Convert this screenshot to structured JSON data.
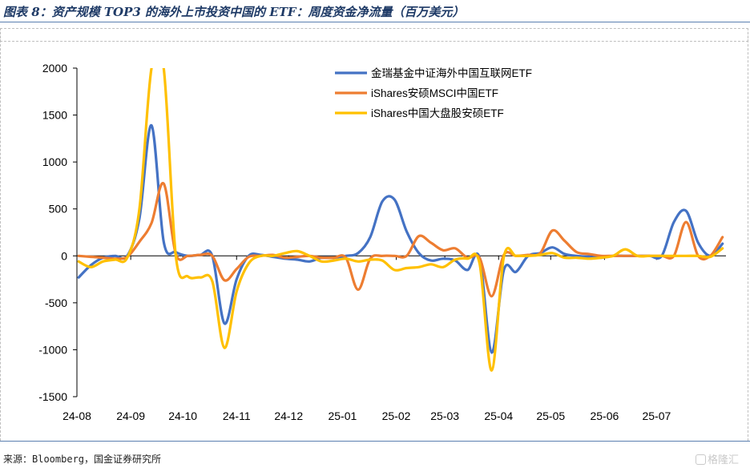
{
  "title": "图表 8：资产规模 TOP3 的海外上市投资中国的 ETF：周度资金净流量（百万美元）",
  "source": "来源：Bloomberg，国金证券研究所",
  "watermark": "格隆汇",
  "chart_data": {
    "type": "line",
    "title": "",
    "xlabel": "",
    "ylabel": "",
    "ylim": [
      -1500,
      2000
    ],
    "yticks": [
      2000,
      1500,
      1000,
      500,
      0,
      -500,
      -1000,
      -1500
    ],
    "x_tick_labels": [
      "24-08",
      "24-09",
      "24-10",
      "24-11",
      "24-12",
      "25-01",
      "25-02",
      "25-03",
      "25-04",
      "25-05",
      "25-06",
      "25-07"
    ],
    "x": [
      "24-08-02",
      "24-08-09",
      "24-08-16",
      "24-08-23",
      "24-08-30",
      "24-09-06",
      "24-09-13",
      "24-09-20",
      "24-09-27",
      "24-10-04",
      "24-10-11",
      "24-10-18",
      "24-10-25",
      "24-11-01",
      "24-11-08",
      "24-11-15",
      "24-11-22",
      "24-11-29",
      "24-12-06",
      "24-12-13",
      "24-12-20",
      "24-12-27",
      "25-01-03",
      "25-01-10",
      "25-01-17",
      "25-01-24",
      "25-01-31",
      "25-02-07",
      "25-02-14",
      "25-02-21",
      "25-02-28",
      "25-03-07",
      "25-03-14",
      "25-03-21",
      "25-03-28",
      "25-04-04",
      "25-04-11",
      "25-04-18",
      "25-04-25",
      "25-05-02",
      "25-05-09",
      "25-05-16",
      "25-05-23",
      "25-05-30",
      "25-06-06",
      "25-06-13",
      "25-06-20",
      "25-06-27",
      "25-07-04",
      "25-07-11",
      "25-07-18",
      "25-07-25",
      "25-08-01",
      "25-08-08"
    ],
    "legend_position": "top-right",
    "grid": false,
    "series": [
      {
        "name": "金瑞基金中证海外中国互联网ETF",
        "color": "#4472c4",
        "values": [
          -230,
          -100,
          -20,
          0,
          0,
          400,
          1390,
          150,
          40,
          0,
          10,
          0,
          -720,
          -250,
          0,
          10,
          -10,
          -30,
          -40,
          -60,
          -20,
          -20,
          0,
          30,
          200,
          580,
          600,
          260,
          30,
          -50,
          -30,
          -50,
          -150,
          -20,
          -1030,
          -150,
          -170,
          0,
          30,
          90,
          20,
          0,
          -10,
          -20,
          0,
          0,
          0,
          0,
          0,
          360,
          480,
          140,
          0,
          130
        ]
      },
      {
        "name": "iShares安硕MSCI中国ETF",
        "color": "#ed7d31",
        "values": [
          0,
          -10,
          -20,
          -30,
          -10,
          150,
          350,
          770,
          20,
          0,
          10,
          0,
          -260,
          -140,
          -10,
          0,
          10,
          -20,
          -10,
          0,
          -20,
          -20,
          -20,
          -360,
          -30,
          0,
          0,
          0,
          210,
          140,
          60,
          80,
          -20,
          -20,
          -430,
          10,
          0,
          10,
          30,
          270,
          160,
          40,
          20,
          0,
          0,
          0,
          0,
          0,
          0,
          0,
          360,
          0,
          0,
          200
        ]
      },
      {
        "name": "iShares中国大盘股安硕ETF",
        "color": "#ffc000",
        "values": [
          -60,
          -120,
          -60,
          -40,
          -20,
          500,
          2000,
          2000,
          0,
          -220,
          -230,
          -270,
          -980,
          -380,
          -80,
          0,
          0,
          30,
          50,
          0,
          -60,
          -50,
          -30,
          -60,
          -40,
          -50,
          -150,
          -130,
          -120,
          -90,
          -120,
          -40,
          -30,
          -80,
          -1220,
          -10,
          0,
          0,
          10,
          30,
          -20,
          -20,
          -30,
          -20,
          0,
          70,
          0,
          0,
          0,
          0,
          0,
          0,
          -10,
          80
        ]
      }
    ]
  }
}
